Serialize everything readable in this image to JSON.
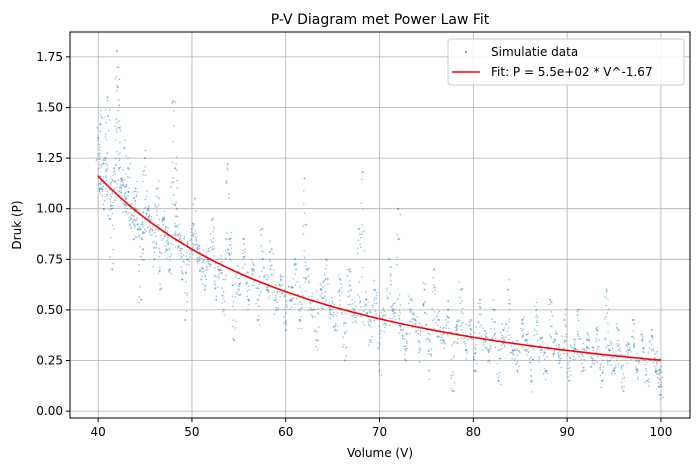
{
  "chart_data": {
    "type": "scatter",
    "title": "P-V Diagram met Power Law Fit",
    "xlabel": "Volume (V)",
    "ylabel": "Druk (P)",
    "xlim": [
      37.0,
      103.1
    ],
    "ylim": [
      -0.034,
      1.873
    ],
    "xticks": [
      40,
      50,
      60,
      70,
      80,
      90,
      100
    ],
    "yticks": [
      "0.00",
      "0.25",
      "0.50",
      "0.75",
      "1.00",
      "1.25",
      "1.50",
      "1.75"
    ],
    "grid": true,
    "legend_position": "top-right",
    "series": [
      {
        "name": "Simulatie data",
        "kind": "scatter",
        "color": "#1f77b4",
        "points": [
          [
            40.0,
            1.35
          ],
          [
            40.2,
            1.1
          ],
          [
            40.4,
            1.45
          ],
          [
            40.6,
            1.0
          ],
          [
            40.8,
            1.25
          ],
          [
            41.0,
            1.55
          ],
          [
            41.2,
            0.95
          ],
          [
            41.5,
            0.7
          ],
          [
            41.7,
            1.2
          ],
          [
            42.0,
            1.78
          ],
          [
            42.1,
            1.6
          ],
          [
            42.3,
            1.4
          ],
          [
            42.5,
            1.15
          ],
          [
            42.8,
            1.3
          ],
          [
            43.0,
            1.05
          ],
          [
            43.2,
            1.2
          ],
          [
            43.5,
            0.95
          ],
          [
            43.8,
            0.85
          ],
          [
            44.0,
            1.1
          ],
          [
            44.3,
            0.9
          ],
          [
            44.6,
            0.55
          ],
          [
            44.8,
            0.8
          ],
          [
            45.0,
            1.25
          ],
          [
            45.3,
            1.0
          ],
          [
            45.6,
            0.9
          ],
          [
            46.0,
            0.75
          ],
          [
            46.3,
            1.1
          ],
          [
            46.6,
            0.6
          ],
          [
            47.0,
            0.95
          ],
          [
            47.3,
            0.8
          ],
          [
            47.6,
            0.7
          ],
          [
            48.0,
            1.53
          ],
          [
            48.2,
            1.2
          ],
          [
            48.4,
            1.0
          ],
          [
            48.7,
            0.85
          ],
          [
            49.0,
            0.65
          ],
          [
            49.3,
            0.45
          ],
          [
            49.6,
            0.75
          ],
          [
            50.0,
            0.9
          ],
          [
            50.3,
            1.05
          ],
          [
            50.6,
            0.8
          ],
          [
            51.0,
            0.65
          ],
          [
            51.4,
            0.6
          ],
          [
            51.8,
            0.75
          ],
          [
            52.2,
            0.95
          ],
          [
            52.6,
            0.55
          ],
          [
            53.0,
            0.7
          ],
          [
            53.4,
            0.5
          ],
          [
            53.8,
            1.22
          ],
          [
            54.0,
            0.85
          ],
          [
            54.5,
            0.35
          ],
          [
            55.0,
            0.6
          ],
          [
            55.5,
            0.85
          ],
          [
            56.0,
            0.55
          ],
          [
            56.5,
            0.7
          ],
          [
            57.0,
            0.45
          ],
          [
            57.5,
            0.9
          ],
          [
            58.0,
            0.6
          ],
          [
            58.5,
            0.8
          ],
          [
            59.0,
            0.5
          ],
          [
            59.5,
            0.65
          ],
          [
            60.0,
            0.4
          ],
          [
            60.5,
            0.55
          ],
          [
            61.0,
            0.75
          ],
          [
            61.5,
            0.45
          ],
          [
            62.0,
            1.15
          ],
          [
            62.3,
            0.7
          ],
          [
            62.8,
            0.5
          ],
          [
            63.3,
            0.35
          ],
          [
            63.8,
            0.6
          ],
          [
            64.3,
            0.75
          ],
          [
            64.8,
            0.5
          ],
          [
            65.3,
            0.4
          ],
          [
            65.8,
            0.65
          ],
          [
            66.3,
            0.25
          ],
          [
            66.8,
            0.7
          ],
          [
            67.3,
            0.5
          ],
          [
            67.8,
            0.9
          ],
          [
            68.2,
            1.18
          ],
          [
            68.6,
            0.55
          ],
          [
            69.0,
            0.35
          ],
          [
            69.5,
            0.6
          ],
          [
            70.0,
            0.2
          ],
          [
            70.5,
            0.45
          ],
          [
            71.0,
            0.75
          ],
          [
            71.5,
            0.5
          ],
          [
            72.0,
            1.0
          ],
          [
            72.3,
            0.4
          ],
          [
            72.8,
            0.25
          ],
          [
            73.3,
            0.55
          ],
          [
            73.8,
            0.45
          ],
          [
            74.3,
            0.3
          ],
          [
            74.8,
            0.6
          ],
          [
            75.3,
            0.2
          ],
          [
            75.8,
            0.7
          ],
          [
            76.3,
            0.45
          ],
          [
            76.8,
            0.35
          ],
          [
            77.3,
            0.5
          ],
          [
            77.8,
            0.1
          ],
          [
            78.2,
            0.4
          ],
          [
            78.7,
            0.6
          ],
          [
            79.2,
            0.3
          ],
          [
            79.7,
            0.45
          ],
          [
            80.2,
            0.2
          ],
          [
            80.7,
            0.55
          ],
          [
            81.2,
            0.35
          ],
          [
            81.7,
            0.25
          ],
          [
            82.2,
            0.5
          ],
          [
            82.7,
            0.15
          ],
          [
            83.2,
            0.4
          ],
          [
            83.7,
            0.6
          ],
          [
            84.2,
            0.3
          ],
          [
            84.7,
            0.2
          ],
          [
            85.2,
            0.45
          ],
          [
            85.7,
            0.35
          ],
          [
            86.2,
            0.15
          ],
          [
            86.7,
            0.5
          ],
          [
            87.2,
            0.3
          ],
          [
            87.7,
            0.2
          ],
          [
            88.2,
            0.55
          ],
          [
            88.7,
            0.35
          ],
          [
            89.2,
            0.25
          ],
          [
            89.7,
            0.45
          ],
          [
            90.2,
            0.15
          ],
          [
            90.7,
            0.3
          ],
          [
            91.2,
            0.5
          ],
          [
            91.7,
            0.2
          ],
          [
            92.2,
            0.35
          ],
          [
            92.7,
            0.25
          ],
          [
            93.2,
            0.4
          ],
          [
            93.7,
            0.15
          ],
          [
            94.2,
            0.6
          ],
          [
            94.5,
            0.3
          ],
          [
            95.0,
            0.2
          ],
          [
            95.5,
            0.4
          ],
          [
            96.0,
            0.1
          ],
          [
            96.5,
            0.3
          ],
          [
            97.0,
            0.45
          ],
          [
            97.5,
            0.2
          ],
          [
            98.0,
            0.35
          ],
          [
            98.5,
            0.15
          ],
          [
            99.0,
            0.4
          ],
          [
            99.5,
            0.2
          ],
          [
            99.8,
            0.12
          ],
          [
            100.0,
            0.08
          ]
        ]
      },
      {
        "name": "Fit: P = 5.5e+02 * V^-1.67",
        "kind": "line",
        "color": "#ff0000",
        "coefficient": 550,
        "exponent": -1.67,
        "x_range": [
          40,
          100
        ]
      }
    ]
  }
}
